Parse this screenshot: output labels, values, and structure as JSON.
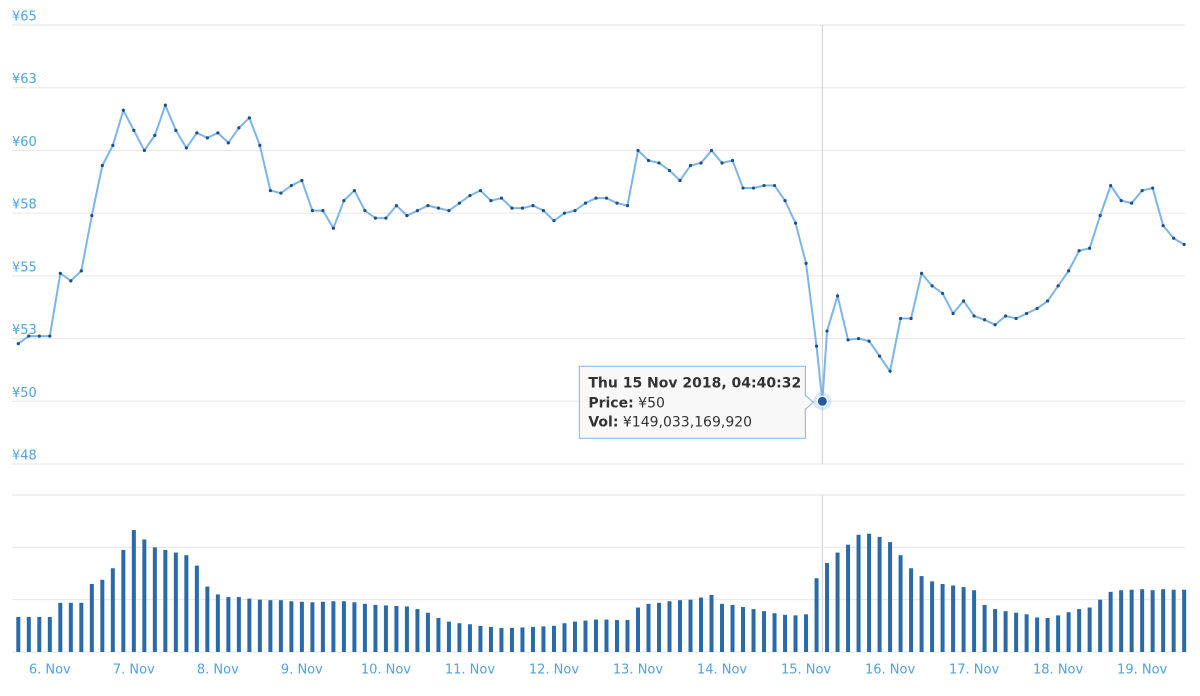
{
  "chart_data": [
    {
      "type": "line",
      "xlim": [
        5.55,
        19.51
      ],
      "xticks": [
        {
          "value": 6,
          "label": "6. Nov"
        },
        {
          "value": 7,
          "label": "7. Nov"
        },
        {
          "value": 8,
          "label": "8. Nov"
        },
        {
          "value": 9,
          "label": "9. Nov"
        },
        {
          "value": 10,
          "label": "10. Nov"
        },
        {
          "value": 11,
          "label": "11. Nov"
        },
        {
          "value": 12,
          "label": "12. Nov"
        },
        {
          "value": 13,
          "label": "13. Nov"
        },
        {
          "value": 14,
          "label": "14. Nov"
        },
        {
          "value": 15,
          "label": "15. Nov"
        },
        {
          "value": 16,
          "label": "16. Nov"
        },
        {
          "value": 17,
          "label": "17. Nov"
        },
        {
          "value": 18,
          "label": "18. Nov"
        },
        {
          "value": 19,
          "label": "19. Nov"
        }
      ],
      "ylim": [
        47.5,
        65
      ],
      "yticks": [
        {
          "value": 47.5,
          "label": "¥48"
        },
        {
          "value": 50,
          "label": "¥50"
        },
        {
          "value": 52.5,
          "label": "¥53"
        },
        {
          "value": 55,
          "label": "¥55"
        },
        {
          "value": 57.5,
          "label": "¥58"
        },
        {
          "value": 60,
          "label": "¥60"
        },
        {
          "value": 62.5,
          "label": "¥63"
        },
        {
          "value": 65,
          "label": "¥65"
        }
      ],
      "grid": true,
      "x": [
        5.625,
        5.75,
        5.875,
        6,
        6.125,
        6.25,
        6.375,
        6.5,
        6.625,
        6.75,
        6.875,
        7,
        7.125,
        7.25,
        7.375,
        7.5,
        7.625,
        7.75,
        7.875,
        8,
        8.125,
        8.25,
        8.375,
        8.5,
        8.625,
        8.75,
        8.875,
        9,
        9.125,
        9.25,
        9.375,
        9.5,
        9.625,
        9.75,
        9.875,
        10,
        10.125,
        10.25,
        10.375,
        10.5,
        10.625,
        10.75,
        10.875,
        11,
        11.125,
        11.25,
        11.375,
        11.5,
        11.625,
        11.75,
        11.875,
        12,
        12.125,
        12.25,
        12.375,
        12.5,
        12.625,
        12.75,
        12.875,
        13,
        13.125,
        13.25,
        13.375,
        13.5,
        13.625,
        13.75,
        13.875,
        14,
        14.125,
        14.25,
        14.375,
        14.5,
        14.625,
        14.75,
        14.875,
        15,
        15.125,
        15.194,
        15.25,
        15.375,
        15.5,
        15.625,
        15.75,
        15.875,
        16,
        16.125,
        16.25,
        16.375,
        16.5,
        16.625,
        16.75,
        16.875,
        17,
        17.125,
        17.25,
        17.375,
        17.5,
        17.625,
        17.75,
        17.875,
        18,
        18.125,
        18.25,
        18.375,
        18.5,
        18.625,
        18.75,
        18.875,
        19,
        19.125,
        19.25,
        19.375,
        19.5
      ],
      "series": [
        {
          "name": "Price",
          "color": "#7cb5ec",
          "values": [
            52.3,
            52.6,
            52.6,
            52.6,
            55.1,
            54.8,
            55.2,
            57.4,
            59.4,
            60.2,
            61.6,
            60.8,
            60.0,
            60.6,
            61.8,
            60.8,
            60.1,
            60.7,
            60.5,
            60.7,
            60.3,
            60.9,
            61.3,
            60.2,
            58.4,
            58.3,
            58.6,
            58.8,
            57.6,
            57.6,
            56.9,
            58.0,
            58.4,
            57.6,
            57.3,
            57.3,
            57.8,
            57.4,
            57.6,
            57.8,
            57.7,
            57.6,
            57.9,
            58.2,
            58.4,
            58.0,
            58.1,
            57.7,
            57.7,
            57.8,
            57.6,
            57.2,
            57.5,
            57.6,
            57.9,
            58.1,
            58.1,
            57.9,
            57.8,
            60.0,
            59.6,
            59.5,
            59.2,
            58.8,
            59.4,
            59.5,
            60.0,
            59.5,
            59.6,
            58.5,
            58.5,
            58.6,
            58.6,
            58.0,
            57.1,
            55.5,
            52.2,
            50,
            52.8,
            54.2,
            52.45,
            52.5,
            52.4,
            51.8,
            51.2,
            53.3,
            53.3,
            55.1,
            54.6,
            54.3,
            53.5,
            54.0,
            53.4,
            53.25,
            53.05,
            53.4,
            53.3,
            53.5,
            53.7,
            54.0,
            54.6,
            55.2,
            56.0,
            56.1,
            57.4,
            58.6,
            58.0,
            57.9,
            58.4,
            58.5,
            57.0,
            56.5,
            56.25
          ]
        }
      ],
      "tooltip": {
        "x": 15.194,
        "title": "Thu 15 Nov 2018, 04:40:32",
        "rows": [
          {
            "label": "Price:",
            "value": "¥50"
          },
          {
            "label": "Vol:",
            "value": "¥149,033,169,920"
          }
        ]
      }
    },
    {
      "type": "bar",
      "xlim": [
        5.55,
        19.51
      ],
      "ylim": [
        0,
        300
      ],
      "yticks": [
        0,
        100,
        200,
        300
      ],
      "grid": true,
      "color": "#2a6aa8",
      "x": [
        5.625,
        5.75,
        5.875,
        6,
        6.125,
        6.25,
        6.375,
        6.5,
        6.625,
        6.75,
        6.875,
        7,
        7.125,
        7.25,
        7.375,
        7.5,
        7.625,
        7.75,
        7.875,
        8,
        8.125,
        8.25,
        8.375,
        8.5,
        8.625,
        8.75,
        8.875,
        9,
        9.125,
        9.25,
        9.375,
        9.5,
        9.625,
        9.75,
        9.875,
        10,
        10.125,
        10.25,
        10.375,
        10.5,
        10.625,
        10.75,
        10.875,
        11,
        11.125,
        11.25,
        11.375,
        11.5,
        11.625,
        11.75,
        11.875,
        12,
        12.125,
        12.25,
        12.375,
        12.5,
        12.625,
        12.75,
        12.875,
        13,
        13.125,
        13.25,
        13.375,
        13.5,
        13.625,
        13.75,
        13.875,
        14,
        14.125,
        14.25,
        14.375,
        14.5,
        14.625,
        14.75,
        14.875,
        15,
        15.125,
        15.25,
        15.375,
        15.5,
        15.625,
        15.75,
        15.875,
        16,
        16.125,
        16.25,
        16.375,
        16.5,
        16.625,
        16.75,
        16.875,
        17,
        17.125,
        17.25,
        17.375,
        17.5,
        17.625,
        17.75,
        17.875,
        18,
        18.125,
        18.25,
        18.375,
        18.5,
        18.625,
        18.75,
        18.875,
        19,
        19.125,
        19.25,
        19.375,
        19.5
      ],
      "values": [
        67,
        67,
        67,
        67,
        94,
        94,
        94,
        130,
        138,
        160,
        195,
        233,
        215,
        200,
        195,
        190,
        185,
        165,
        125,
        110,
        105,
        105,
        102,
        100,
        99,
        99,
        97,
        96,
        95,
        96,
        97,
        97,
        95,
        92,
        90,
        89,
        88,
        87,
        82,
        75,
        65,
        58,
        55,
        53,
        50,
        48,
        46,
        46,
        47,
        48,
        49,
        50,
        55,
        58,
        60,
        62,
        62,
        61,
        61,
        85,
        92,
        94,
        97,
        99,
        100,
        104,
        109,
        92,
        90,
        86,
        82,
        78,
        74,
        71,
        70,
        72,
        141,
        170,
        190,
        205,
        224,
        226,
        220,
        210,
        185,
        160,
        145,
        135,
        130,
        127,
        124,
        118,
        90,
        82,
        78,
        75,
        72,
        66,
        65,
        70,
        76,
        82,
        85,
        100,
        115,
        118,
        119,
        120,
        118,
        120,
        119,
        119
      ]
    }
  ]
}
